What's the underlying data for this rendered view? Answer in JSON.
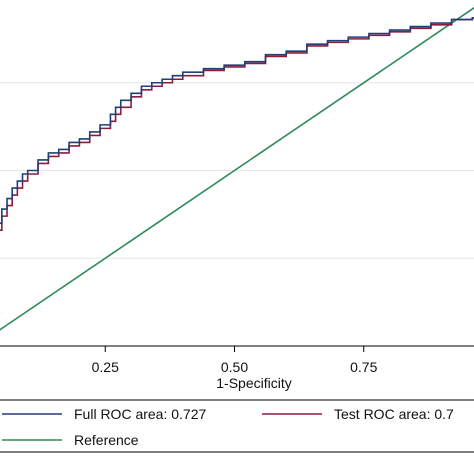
{
  "chart_data": {
    "type": "line",
    "xlabel": "1-Specificity",
    "ylabel": "",
    "xlim": [
      0,
      1
    ],
    "ylim": [
      0,
      1
    ],
    "x_ticks": [
      "0.25",
      "0.50",
      "0.75"
    ],
    "x_tick_values": [
      0.25,
      0.5,
      0.75
    ],
    "y_tick_values": [
      0.25,
      0.5,
      0.75,
      1.0
    ],
    "grid": true,
    "legend_placement": "bottom",
    "series": [
      {
        "name": "Full ROC area: 0.727",
        "color": "#1f3f7a",
        "x": [
          0,
          0.02,
          0.03,
          0.04,
          0.05,
          0.06,
          0.07,
          0.08,
          0.09,
          0.1,
          0.12,
          0.14,
          0.16,
          0.18,
          0.2,
          0.22,
          0.24,
          0.26,
          0.27,
          0.28,
          0.3,
          0.32,
          0.34,
          0.36,
          0.38,
          0.4,
          0.44,
          0.48,
          0.52,
          0.56,
          0.6,
          0.64,
          0.68,
          0.72,
          0.76,
          0.8,
          0.84,
          0.88,
          0.92,
          0.96,
          1.0
        ],
        "y": [
          0.2,
          0.25,
          0.31,
          0.35,
          0.39,
          0.42,
          0.45,
          0.47,
          0.49,
          0.5,
          0.53,
          0.55,
          0.56,
          0.58,
          0.59,
          0.61,
          0.63,
          0.66,
          0.68,
          0.7,
          0.72,
          0.74,
          0.75,
          0.76,
          0.77,
          0.78,
          0.79,
          0.8,
          0.81,
          0.83,
          0.84,
          0.86,
          0.87,
          0.88,
          0.89,
          0.9,
          0.91,
          0.92,
          0.93,
          0.935,
          0.94
        ]
      },
      {
        "name": "Test ROC area: 0.7",
        "color": "#8c1c3a",
        "x": [
          0,
          0.02,
          0.03,
          0.04,
          0.05,
          0.06,
          0.07,
          0.08,
          0.09,
          0.1,
          0.12,
          0.14,
          0.16,
          0.18,
          0.2,
          0.22,
          0.24,
          0.26,
          0.27,
          0.28,
          0.3,
          0.32,
          0.34,
          0.36,
          0.38,
          0.4,
          0.44,
          0.48,
          0.52,
          0.56,
          0.6,
          0.64,
          0.68,
          0.72,
          0.76,
          0.8,
          0.84,
          0.88,
          0.92,
          0.96,
          1.0
        ],
        "y": [
          0.19,
          0.22,
          0.28,
          0.33,
          0.37,
          0.4,
          0.43,
          0.45,
          0.47,
          0.49,
          0.52,
          0.54,
          0.55,
          0.57,
          0.58,
          0.6,
          0.62,
          0.64,
          0.66,
          0.68,
          0.71,
          0.73,
          0.74,
          0.75,
          0.76,
          0.77,
          0.785,
          0.795,
          0.805,
          0.825,
          0.835,
          0.855,
          0.865,
          0.875,
          0.885,
          0.895,
          0.905,
          0.915,
          0.93,
          0.935,
          0.94
        ]
      },
      {
        "name": "Reference",
        "color": "#2e8b57",
        "x": [
          0,
          1
        ],
        "y": [
          0,
          1
        ]
      }
    ]
  }
}
